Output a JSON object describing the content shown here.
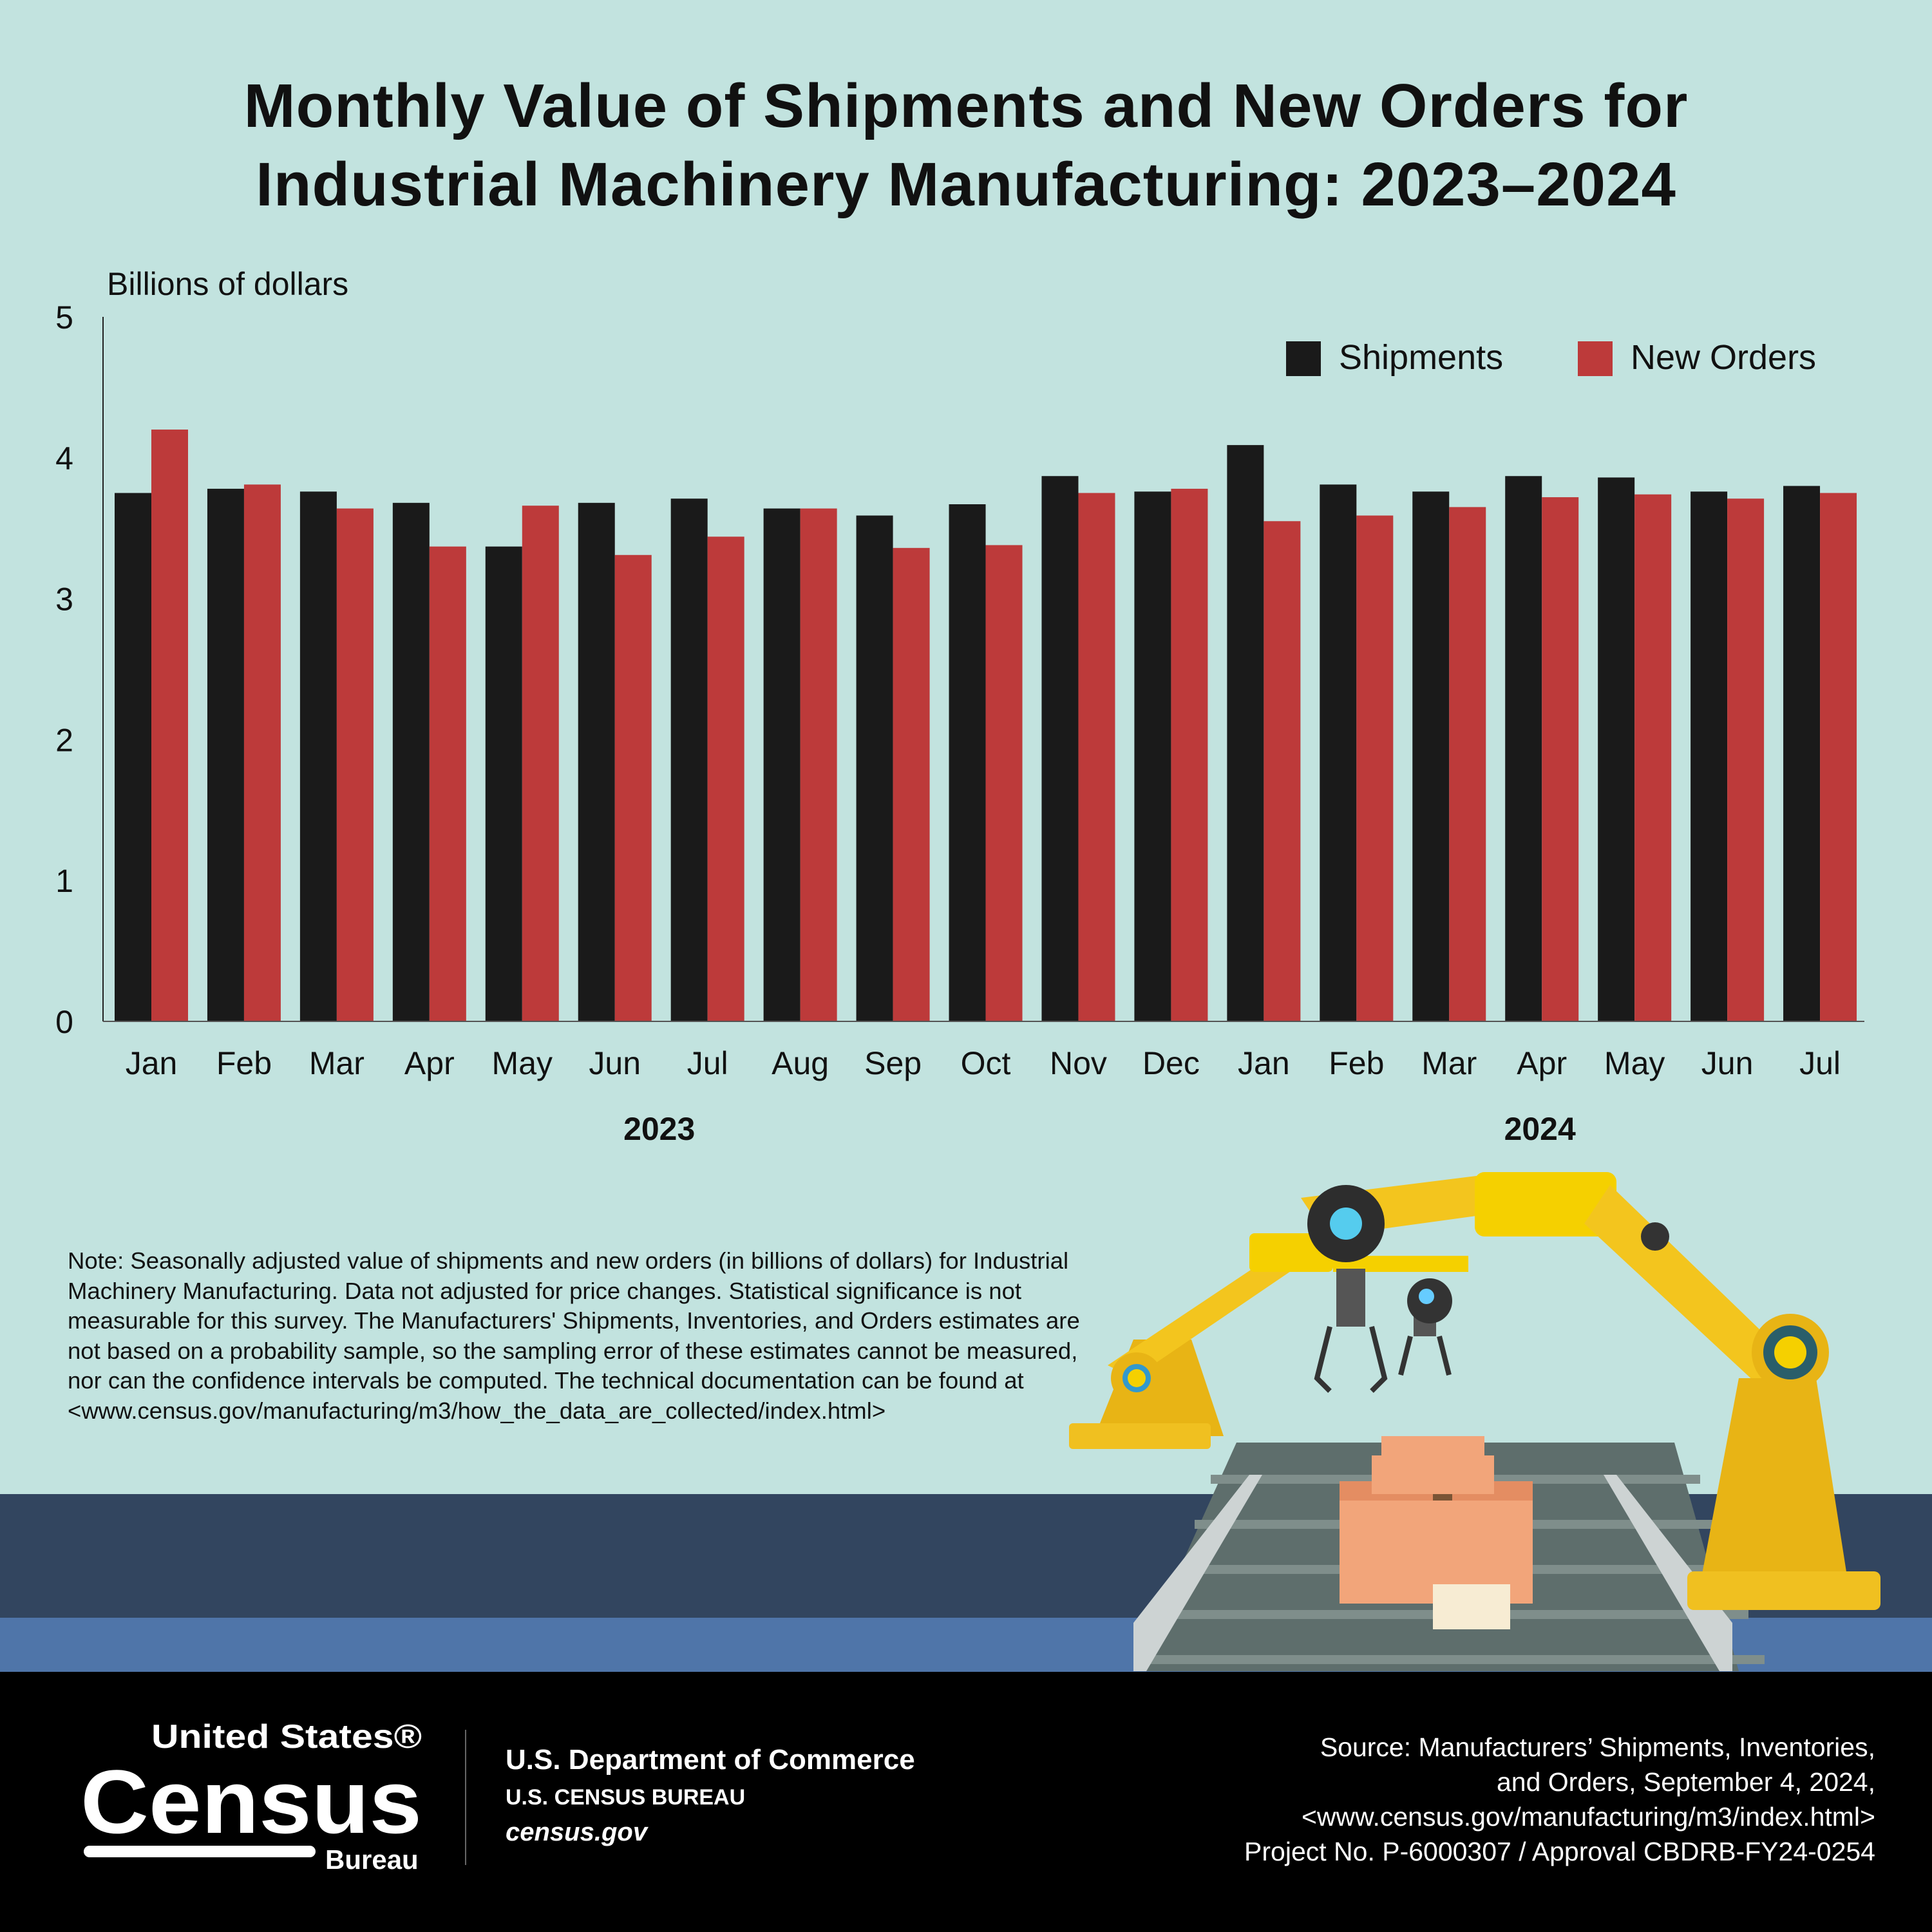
{
  "chart_data": {
    "type": "bar",
    "title": "Monthly Value of Shipments and New Orders for Industrial Machinery Manufacturing: 2023–2024",
    "title_lines": [
      "Monthly Value of Shipments and New Orders for",
      "Industrial Machinery Manufacturing: 2023–2024"
    ],
    "ylabel": "Billions of dollars",
    "ylim": [
      0,
      5
    ],
    "yticks": [
      "0",
      "1",
      "2",
      "3",
      "4",
      "5"
    ],
    "grid": false,
    "legend_position": "top-right",
    "categories": [
      "Jan",
      "Feb",
      "Mar",
      "Apr",
      "May",
      "Jun",
      "Jul",
      "Aug",
      "Sep",
      "Oct",
      "Nov",
      "Dec",
      "Jan",
      "Feb",
      "Mar",
      "Apr",
      "May",
      "Jun",
      "Jul"
    ],
    "years": [
      {
        "label": "2023",
        "span": [
          0,
          11
        ]
      },
      {
        "label": "2024",
        "span": [
          12,
          18
        ]
      }
    ],
    "series": [
      {
        "name": "Shipments",
        "color": "#1a1a1a",
        "values": [
          3.75,
          3.78,
          3.76,
          3.68,
          3.37,
          3.68,
          3.71,
          3.64,
          3.59,
          3.67,
          3.87,
          3.76,
          4.09,
          3.81,
          3.76,
          3.87,
          3.86,
          3.76,
          3.8
        ]
      },
      {
        "name": "New Orders",
        "color": "#bd3a3a",
        "values": [
          4.2,
          3.81,
          3.64,
          3.37,
          3.66,
          3.31,
          3.44,
          3.64,
          3.36,
          3.38,
          3.75,
          3.78,
          3.55,
          3.59,
          3.65,
          3.72,
          3.74,
          3.71,
          3.75
        ]
      }
    ]
  },
  "note": "Note: Seasonally adjusted value of shipments and new orders (in billions of dollars) for Industrial Machinery Manufacturing. Data not adjusted for price changes. Statistical significance is not measurable for this survey. The Manufacturers' Shipments, Inventories, and Orders estimates are not based on a probability sample, so the sampling error of these estimates cannot be measured, nor can the confidence intervals be computed. The technical documentation can be found at <www.census.gov/manufacturing/m3/how_the_data_are_collected/index.html>",
  "footer": {
    "logo_text": [
      "United States®",
      "Census",
      "Bureau"
    ],
    "department": "U.S. Department of Commerce",
    "bureau": "U.S. CENSUS BUREAU",
    "website": "census.gov",
    "source_lines": [
      "Source: Manufacturers’ Shipments, Inventories,",
      "and Orders, September 4, 2024,",
      "<www.census.gov/manufacturing/m3/index.html>",
      "Project No. P-6000307 / Approval CBDRB-FY24-0254"
    ]
  },
  "colors": {
    "background": "#c2e3df",
    "band_dark": "#32455f",
    "band_blue": "#4f75a9",
    "footer": "#000000"
  }
}
